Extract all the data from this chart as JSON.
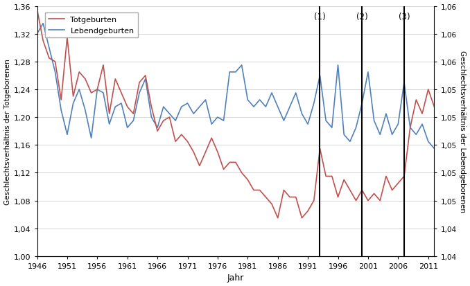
{
  "title": "",
  "xlabel": "Jahr",
  "ylabel_left": "Geschlechtsverhältnis der Totgeborenen",
  "ylabel_right": "Geschlechtsverhältnis der Lebendgeborenen",
  "xticks": [
    1946,
    1951,
    1956,
    1961,
    1966,
    1971,
    1976,
    1981,
    1986,
    1991,
    1996,
    2001,
    2006,
    2011
  ],
  "vlines": [
    1993,
    2000,
    2007
  ],
  "vline_labels": [
    "(1)",
    "(2)",
    "(3)"
  ],
  "legend_totgeburten": "Totgeburten",
  "legend_lebendgeburten": "Lebendgeburten",
  "color_tot": "#c0504d",
  "color_leb": "#4f81bd",
  "years": [
    1946,
    1947,
    1948,
    1949,
    1950,
    1951,
    1952,
    1953,
    1954,
    1955,
    1956,
    1957,
    1958,
    1959,
    1960,
    1961,
    1962,
    1963,
    1964,
    1965,
    1966,
    1967,
    1968,
    1969,
    1970,
    1971,
    1972,
    1973,
    1974,
    1975,
    1976,
    1977,
    1978,
    1979,
    1980,
    1981,
    1982,
    1983,
    1984,
    1985,
    1986,
    1987,
    1988,
    1989,
    1990,
    1991,
    1992,
    1993,
    1994,
    1995,
    1996,
    1997,
    1998,
    1999,
    2000,
    2001,
    2002,
    2003,
    2004,
    2005,
    2006,
    2007,
    2008,
    2009,
    2010,
    2011,
    2012
  ],
  "totgeburten": [
    1.355,
    1.31,
    1.285,
    1.28,
    1.225,
    1.315,
    1.23,
    1.265,
    1.255,
    1.235,
    1.24,
    1.275,
    1.205,
    1.255,
    1.235,
    1.215,
    1.205,
    1.25,
    1.26,
    1.215,
    1.18,
    1.195,
    1.2,
    1.165,
    1.175,
    1.165,
    1.15,
    1.13,
    1.15,
    1.17,
    1.15,
    1.125,
    1.135,
    1.135,
    1.12,
    1.11,
    1.095,
    1.095,
    1.085,
    1.075,
    1.055,
    1.095,
    1.085,
    1.085,
    1.055,
    1.065,
    1.08,
    1.155,
    1.115,
    1.115,
    1.085,
    1.11,
    1.095,
    1.08,
    1.095,
    1.08,
    1.09,
    1.08,
    1.115,
    1.095,
    1.105,
    1.115,
    1.185,
    1.225,
    1.205,
    1.24,
    1.215
  ],
  "lebendgeburten": [
    1.32,
    1.335,
    1.3,
    1.265,
    1.21,
    1.175,
    1.22,
    1.24,
    1.21,
    1.17,
    1.24,
    1.235,
    1.19,
    1.215,
    1.22,
    1.185,
    1.195,
    1.235,
    1.255,
    1.2,
    1.185,
    1.215,
    1.205,
    1.195,
    1.215,
    1.22,
    1.205,
    1.215,
    1.225,
    1.19,
    1.2,
    1.195,
    1.265,
    1.265,
    1.275,
    1.225,
    1.215,
    1.225,
    1.215,
    1.235,
    1.215,
    1.195,
    1.215,
    1.235,
    1.205,
    1.19,
    1.22,
    1.26,
    1.195,
    1.185,
    1.275,
    1.175,
    1.165,
    1.185,
    1.22,
    1.265,
    1.195,
    1.175,
    1.205,
    1.175,
    1.19,
    1.25,
    1.185,
    1.175,
    1.19,
    1.165,
    1.155
  ],
  "left_ticks": [
    1.0,
    1.04,
    1.08,
    1.12,
    1.16,
    1.2,
    1.24,
    1.28,
    1.32,
    1.36
  ],
  "right_labels": [
    "1,04",
    "1,04",
    "1,05",
    "1,05",
    "1,05",
    "1,05",
    "1,05",
    "1,06",
    "1,06",
    "1,06"
  ]
}
